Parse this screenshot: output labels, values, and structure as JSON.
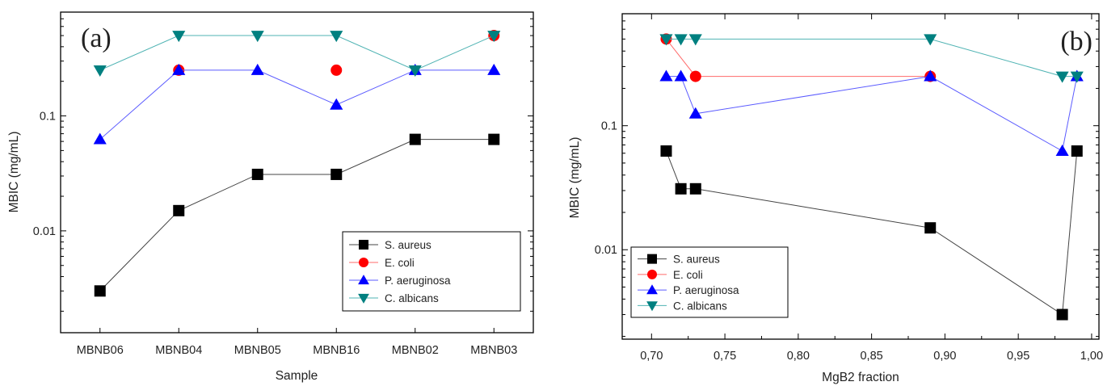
{
  "chart_data": [
    {
      "panel": "(a)",
      "type": "line",
      "x_type": "category",
      "categories": [
        "MBNB06",
        "MBNB04",
        "MBNB05",
        "MBNB16",
        "MBNB02",
        "MBNB03"
      ],
      "xlabel": "Sample",
      "ylabel": "MBIC (mg/mL)",
      "yscale": "log",
      "ylim": [
        0.0013,
        0.8
      ],
      "yticks": [
        0.01,
        0.1
      ],
      "ytick_labels": [
        "0.01",
        "0.1"
      ],
      "legend_position": "lower-right",
      "series": [
        {
          "name": "S. aureus",
          "marker": "square",
          "color": "#000000",
          "values": [
            0.003,
            0.015,
            0.031,
            0.031,
            0.0625,
            0.0625
          ]
        },
        {
          "name": "E. coli",
          "marker": "circle",
          "color": "#ff0000",
          "values": [
            null,
            0.25,
            null,
            0.25,
            null,
            0.5
          ]
        },
        {
          "name": "P. aeruginosa",
          "marker": "triangle-up",
          "color": "#0000ff",
          "values": [
            0.0625,
            0.25,
            0.25,
            0.125,
            0.25,
            0.25
          ]
        },
        {
          "name": "C. albicans",
          "marker": "triangle-down",
          "color": "#008080",
          "values": [
            0.25,
            0.5,
            0.5,
            0.5,
            0.25,
            0.5
          ]
        }
      ]
    },
    {
      "panel": "(b)",
      "type": "line",
      "x_type": "numeric",
      "xlabel": "MgB2 fraction",
      "ylabel": "MBIC (mg/mL)",
      "xlim": [
        0.68,
        1.005
      ],
      "xticks": [
        0.7,
        0.75,
        0.8,
        0.85,
        0.9,
        0.95,
        1.0
      ],
      "xtick_labels": [
        "0,70",
        "0,75",
        "0,80",
        "0,85",
        "0,90",
        "0,95",
        "1,00"
      ],
      "yscale": "log",
      "ylim": [
        0.0019,
        0.8
      ],
      "yticks": [
        0.01,
        0.1
      ],
      "ytick_labels": [
        "0.01",
        "0.1"
      ],
      "legend_position": "lower-left",
      "series": [
        {
          "name": "S. aureus",
          "marker": "square",
          "color": "#000000",
          "x": [
            0.71,
            0.72,
            0.73,
            0.89,
            0.98,
            0.99
          ],
          "values": [
            0.0625,
            0.031,
            0.031,
            0.015,
            0.003,
            0.0625
          ]
        },
        {
          "name": "E. coli",
          "marker": "circle",
          "color": "#ff0000",
          "x": [
            0.71,
            0.73,
            0.89
          ],
          "values": [
            0.5,
            0.25,
            0.25
          ]
        },
        {
          "name": "P. aeruginosa",
          "marker": "triangle-up",
          "color": "#0000ff",
          "x": [
            0.71,
            0.72,
            0.73,
            0.89,
            0.98,
            0.99
          ],
          "values": [
            0.25,
            0.25,
            0.125,
            0.25,
            0.0625,
            0.25
          ]
        },
        {
          "name": "C. albicans",
          "marker": "triangle-down",
          "color": "#008080",
          "x": [
            0.71,
            0.72,
            0.73,
            0.89,
            0.98,
            0.99
          ],
          "values": [
            0.5,
            0.5,
            0.5,
            0.5,
            0.25,
            0.25
          ]
        }
      ]
    }
  ]
}
